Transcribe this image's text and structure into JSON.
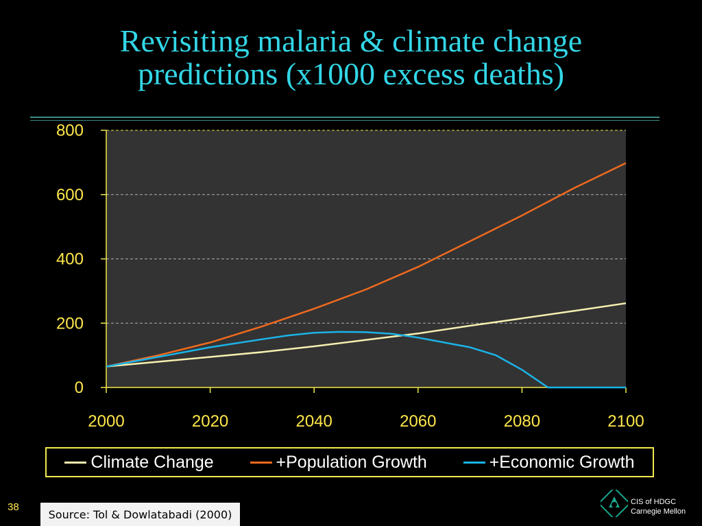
{
  "slide": {
    "title_line1": "Revisiting malaria & climate change",
    "title_line2": "predictions (x1000 excess deaths)",
    "page_number": "38",
    "source": "Source: Tol & Dowlatabadi (2000)",
    "logo_line1": "CIS of HDGC",
    "logo_line2": "Carnegie Mellon"
  },
  "colors": {
    "climate": "#f5f0b0",
    "population": "#f06a1e",
    "economic": "#1bb3e8",
    "axis": "#f2ea4c",
    "plot_bg": "#333333",
    "tick_text": "#ffe74a"
  },
  "chart_data": {
    "type": "line",
    "title": "Revisiting malaria & climate change predictions (x1000 excess deaths)",
    "xlabel": "",
    "ylabel": "",
    "xlim": [
      2000,
      2100
    ],
    "ylim": [
      0,
      800
    ],
    "x_ticks": [
      2000,
      2020,
      2040,
      2060,
      2080,
      2100
    ],
    "y_ticks": [
      0,
      200,
      400,
      600,
      800
    ],
    "grid": "horizontal dashed",
    "legend_position": "bottom",
    "series": [
      {
        "name": "Climate Change",
        "color": "#f5f0b0",
        "x": [
          2000,
          2010,
          2020,
          2030,
          2040,
          2050,
          2060,
          2070,
          2080,
          2090,
          2100
        ],
        "values": [
          65,
          80,
          95,
          110,
          128,
          148,
          168,
          192,
          215,
          238,
          262
        ]
      },
      {
        "name": "+Population Growth",
        "color": "#f06a1e",
        "x": [
          2000,
          2010,
          2020,
          2030,
          2040,
          2050,
          2060,
          2070,
          2080,
          2090,
          2100
        ],
        "values": [
          65,
          100,
          140,
          190,
          245,
          305,
          375,
          455,
          535,
          620,
          698
        ]
      },
      {
        "name": "+Economic Growth",
        "color": "#1bb3e8",
        "x": [
          2000,
          2010,
          2020,
          2030,
          2035,
          2040,
          2045,
          2050,
          2055,
          2060,
          2065,
          2070,
          2075,
          2080,
          2085,
          2090,
          2095,
          2100
        ],
        "values": [
          65,
          95,
          125,
          150,
          162,
          170,
          173,
          172,
          167,
          155,
          140,
          125,
          100,
          55,
          0,
          0,
          0,
          0
        ]
      }
    ]
  }
}
